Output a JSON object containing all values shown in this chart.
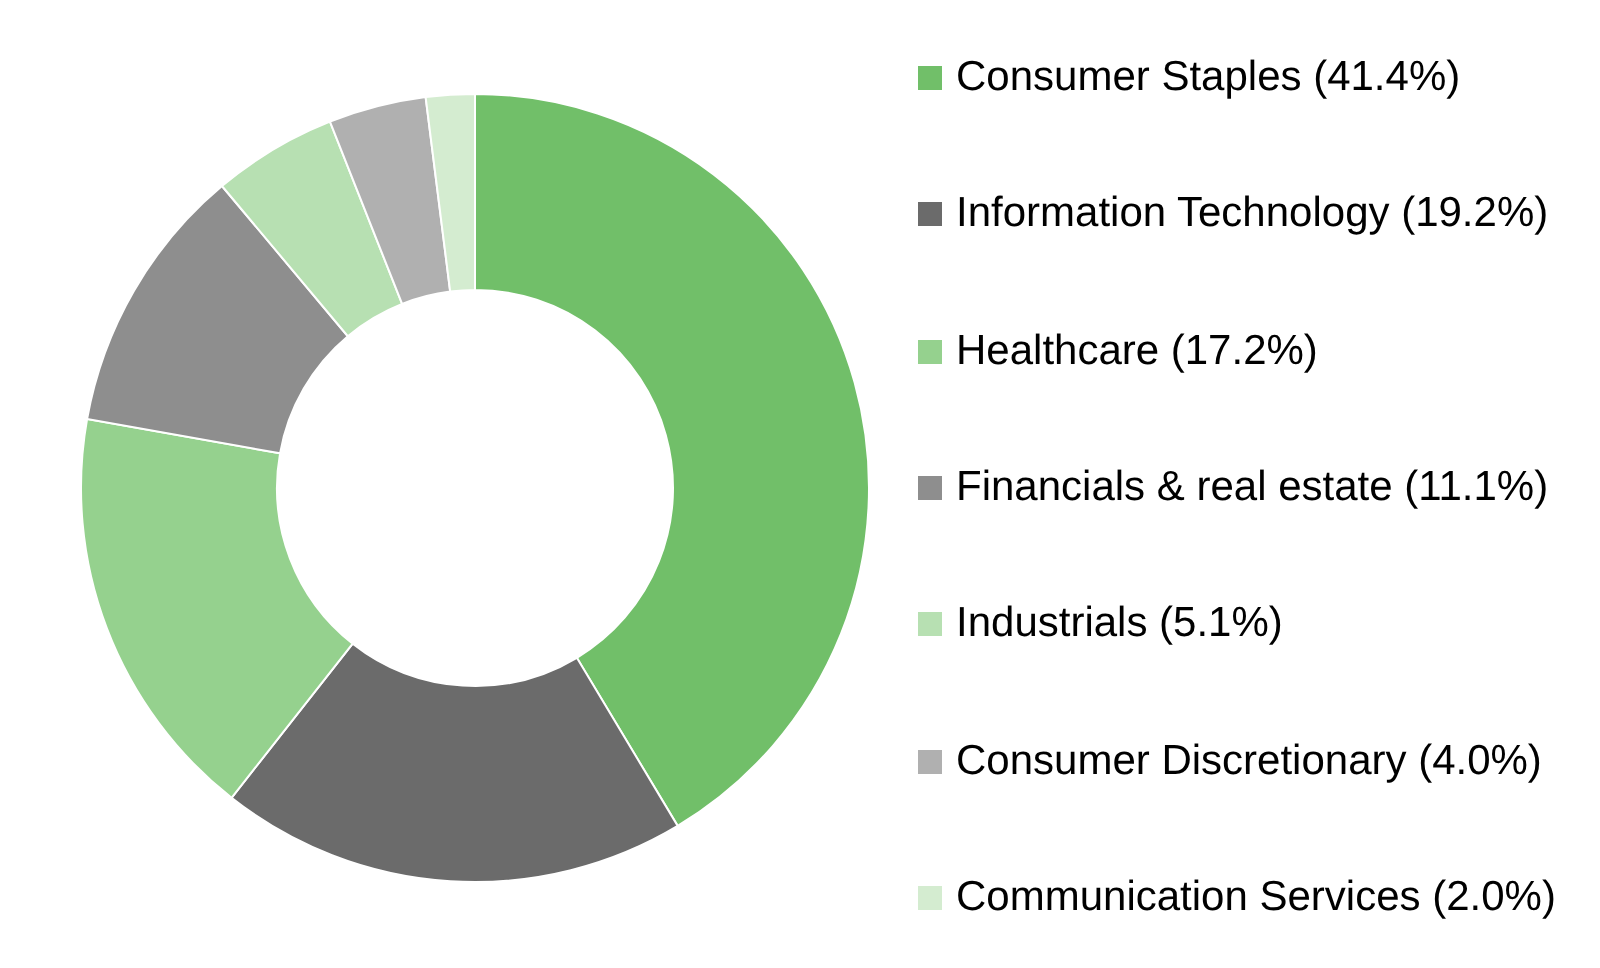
{
  "chart_data": {
    "type": "donut",
    "categories": [
      "Consumer Staples (41.4%)",
      "Information Technology (19.2%)",
      "Healthcare (17.2%)",
      "Financials & real estate (11.1%)",
      "Industrials (5.1%)",
      "Consumer Discretionary (4.0%)",
      "Communication Services (2.0%)"
    ],
    "values": [
      41.4,
      19.2,
      17.2,
      11.1,
      5.1,
      4.0,
      2.0
    ],
    "colors": [
      "#71bf69",
      "#6b6b6b",
      "#95d18e",
      "#8e8e8e",
      "#b7e0b2",
      "#b0b0b0",
      "#d4ecd0"
    ],
    "legend": "right"
  }
}
